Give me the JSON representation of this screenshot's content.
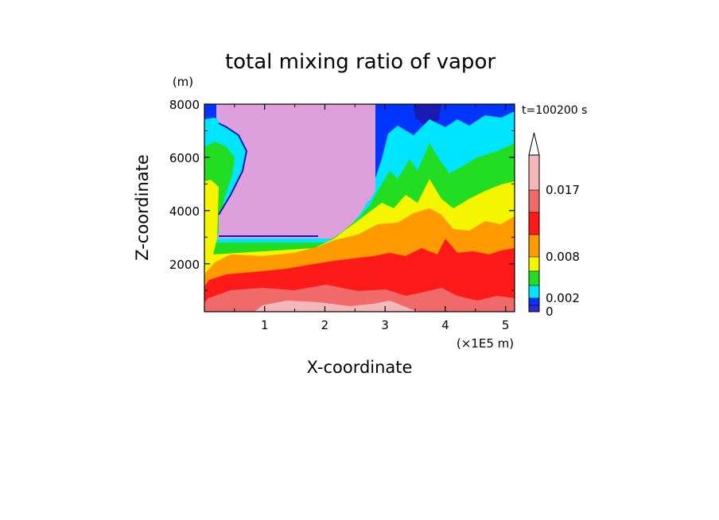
{
  "chart_data": {
    "type": "heatmap",
    "title": "total mixing ratio of vapor",
    "xlabel": "X-coordinate",
    "ylabel": "Z-coordinate",
    "x_unit": "(×1E5 m)",
    "y_unit": "(m)",
    "time_label": "t=100200 s",
    "xlim": [
      0,
      5.15
    ],
    "ylim": [
      200,
      8000
    ],
    "x_ticks": [
      "1",
      "2",
      "3",
      "4",
      "5"
    ],
    "x_tick_values": [
      1,
      2,
      3,
      4,
      5
    ],
    "y_ticks": [
      "2000",
      "4000",
      "6000",
      "8000"
    ],
    "y_tick_values": [
      2000,
      4000,
      6000,
      8000
    ],
    "colorbar": {
      "labels": [
        "0",
        "0.002",
        "0.008",
        "0.017"
      ],
      "colors": [
        "#2b2bd0",
        "#0035ff",
        "#00e5ff",
        "#22dd22",
        "#f5f500",
        "#ff9a00",
        "#ff1a1a",
        "#f06a6a",
        "#f4b8b8"
      ],
      "extend": "max"
    },
    "background_fill": "#dda0dd"
  }
}
